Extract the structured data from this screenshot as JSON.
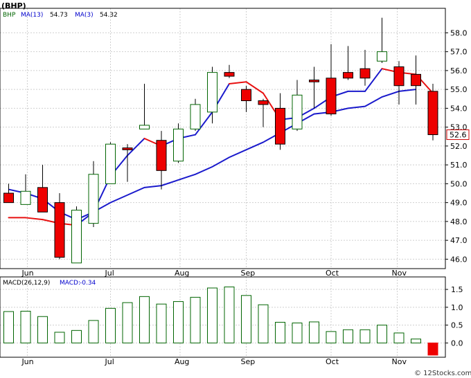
{
  "chart_data": [
    {
      "type": "candlestick",
      "ticker": "(BHP)",
      "legend": [
        {
          "label": "BHP",
          "value": "",
          "color": "#006400"
        },
        {
          "label": "MA(13)",
          "value": "54.73",
          "color": "#0000cc"
        },
        {
          "label": "MA(3)",
          "value": "54.32",
          "color": "#0000cc"
        }
      ],
      "last_price_label": "52.6",
      "ylim": [
        45.5,
        59.3
      ],
      "y_ticks": [
        "46.0",
        "47.0",
        "48.0",
        "49.0",
        "50.0",
        "51.0",
        "52.0",
        "53.0",
        "54.0",
        "55.0",
        "56.0",
        "57.0",
        "58.0"
      ],
      "months": [
        "Jun",
        "Jul",
        "Aug",
        "Sep",
        "Oct",
        "Nov"
      ],
      "grid": true,
      "candles": [
        {
          "open": 49.5,
          "high": 50.0,
          "low": 49.0,
          "close": 49.0
        },
        {
          "open": 48.9,
          "high": 50.5,
          "low": 48.9,
          "close": 49.6
        },
        {
          "open": 49.8,
          "high": 51.0,
          "low": 48.5,
          "close": 48.5
        },
        {
          "open": 49.0,
          "high": 49.5,
          "low": 46.0,
          "close": 46.1
        },
        {
          "open": 45.8,
          "high": 48.8,
          "low": 45.8,
          "close": 48.6
        },
        {
          "open": 47.9,
          "high": 51.2,
          "low": 47.7,
          "close": 50.5
        },
        {
          "open": 50.0,
          "high": 52.2,
          "low": 50.0,
          "close": 52.1
        },
        {
          "open": 51.9,
          "high": 52.1,
          "low": 50.1,
          "close": 51.8
        },
        {
          "open": 52.9,
          "high": 55.3,
          "low": 52.9,
          "close": 53.1
        },
        {
          "open": 52.3,
          "high": 52.8,
          "low": 49.7,
          "close": 50.7
        },
        {
          "open": 51.2,
          "high": 53.2,
          "low": 51.1,
          "close": 52.9
        },
        {
          "open": 52.9,
          "high": 54.5,
          "low": 52.8,
          "close": 54.2
        },
        {
          "open": 53.8,
          "high": 56.2,
          "low": 53.2,
          "close": 55.9
        },
        {
          "open": 55.9,
          "high": 56.3,
          "low": 55.6,
          "close": 55.7
        },
        {
          "open": 55.0,
          "high": 55.2,
          "low": 53.8,
          "close": 54.4
        },
        {
          "open": 54.4,
          "high": 54.5,
          "low": 53.0,
          "close": 54.2
        },
        {
          "open": 54.0,
          "high": 54.8,
          "low": 51.8,
          "close": 52.1
        },
        {
          "open": 52.9,
          "high": 55.5,
          "low": 52.8,
          "close": 54.7
        },
        {
          "open": 55.5,
          "high": 56.2,
          "low": 54.0,
          "close": 55.4
        },
        {
          "open": 55.6,
          "high": 57.4,
          "low": 53.6,
          "close": 53.7
        },
        {
          "open": 55.9,
          "high": 57.3,
          "low": 55.5,
          "close": 55.6
        },
        {
          "open": 56.1,
          "high": 57.1,
          "low": 55.2,
          "close": 55.6
        },
        {
          "open": 56.5,
          "high": 58.8,
          "low": 56.4,
          "close": 57.0
        },
        {
          "open": 56.2,
          "high": 56.5,
          "low": 54.2,
          "close": 55.2
        },
        {
          "open": 55.8,
          "high": 56.8,
          "low": 54.2,
          "close": 55.2
        },
        {
          "open": 54.9,
          "high": 55.3,
          "low": 52.3,
          "close": 52.6
        }
      ],
      "ma_slow": [
        49.7,
        49.5,
        49.2,
        48.5,
        48.1,
        48.5,
        49.0,
        49.4,
        49.8,
        49.9,
        50.2,
        50.5,
        50.9,
        51.4,
        51.8,
        52.2,
        52.7,
        53.2,
        53.7,
        53.8,
        54.0,
        54.1,
        54.6,
        54.9,
        55.0,
        null
      ],
      "ma_fast": [
        48.2,
        48.2,
        48.1,
        47.9,
        47.8,
        48.5,
        50.4,
        51.5,
        52.4,
        52.0,
        52.4,
        52.6,
        53.8,
        55.3,
        55.4,
        54.8,
        53.4,
        53.5,
        54.0,
        54.6,
        54.9,
        54.9,
        56.1,
        55.9,
        55.8,
        54.8
      ],
      "ma_fast_red_segments": [
        [
          0,
          4
        ],
        [
          8,
          9
        ],
        [
          13,
          16
        ],
        [
          22,
          25
        ]
      ]
    },
    {
      "type": "bar",
      "title": "MACD(26,12,9)",
      "legend": [
        {
          "label": "MACD(26,12,9)",
          "color": "#000000"
        },
        {
          "label": "MACD:",
          "value": "-0.34",
          "color": "#0000cc"
        }
      ],
      "ylim": [
        -0.4,
        1.85
      ],
      "y_ticks": [
        "1.5",
        "1.0",
        "0.5",
        "0.0"
      ],
      "months": [
        "Jun",
        "Jul",
        "Aug",
        "Sep",
        "Oct",
        "Nov"
      ],
      "values": [
        0.88,
        0.89,
        0.74,
        0.3,
        0.35,
        0.63,
        0.97,
        1.13,
        1.3,
        1.09,
        1.16,
        1.28,
        1.54,
        1.57,
        1.33,
        1.07,
        0.58,
        0.56,
        0.59,
        0.32,
        0.37,
        0.37,
        0.5,
        0.28,
        0.11,
        -0.34
      ]
    }
  ],
  "footer": {
    "watermark": "© 12Stocks.com"
  }
}
